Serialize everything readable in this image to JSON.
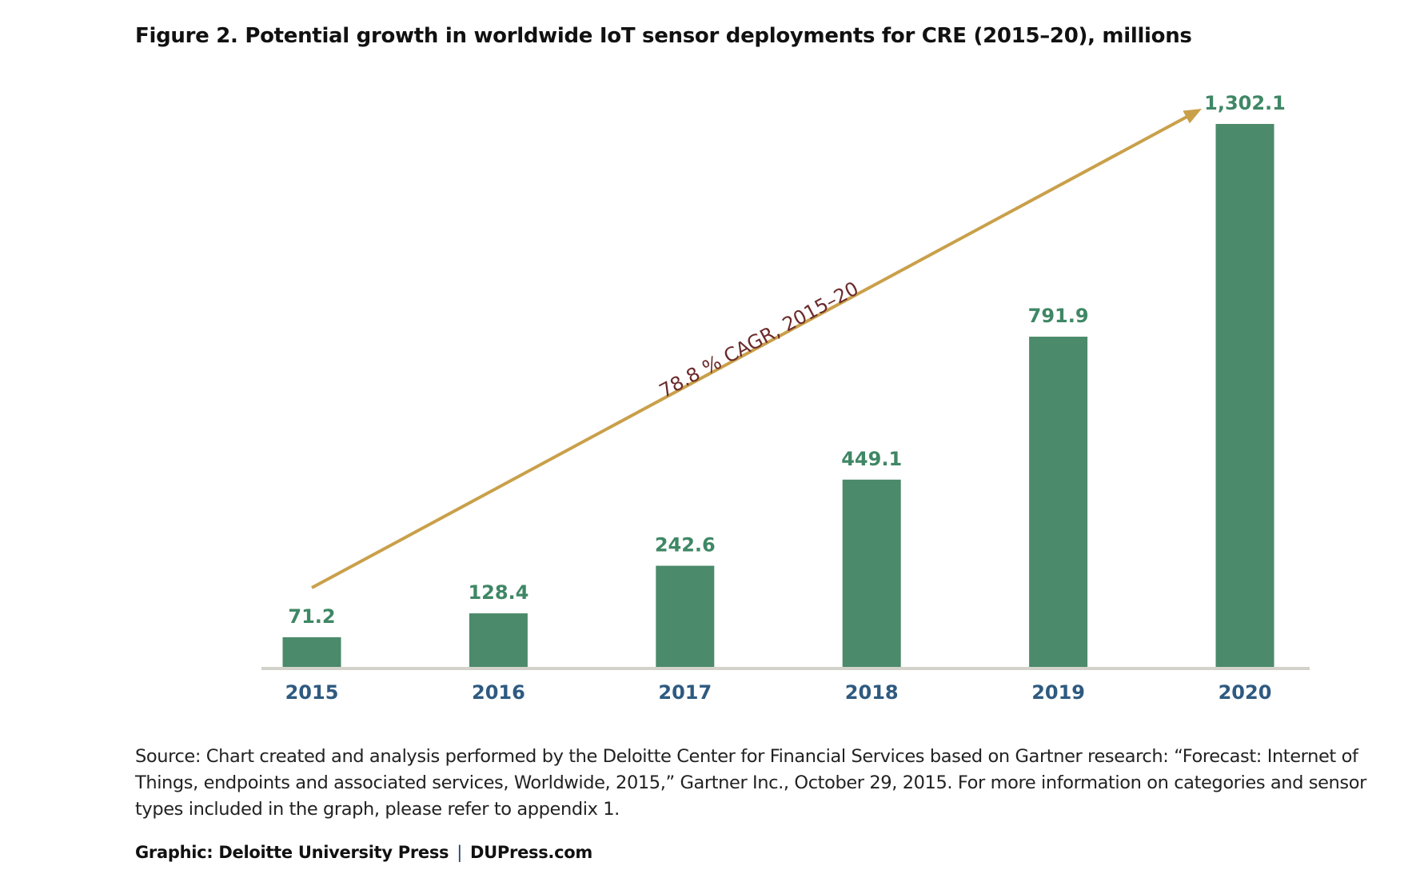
{
  "chart_data": {
    "type": "bar",
    "title": "Figure 2. Potential growth in worldwide IoT sensor deployments for CRE (2015–20), millions",
    "categories": [
      "2015",
      "2016",
      "2017",
      "2018",
      "2019",
      "2020"
    ],
    "values": [
      71.2,
      128.4,
      242.6,
      449.1,
      791.9,
      1302.1
    ],
    "value_labels": [
      "71.2",
      "128.4",
      "242.6",
      "449.1",
      "791.9",
      "1,302.1"
    ],
    "xlabel": "",
    "ylabel": "",
    "ylim": [
      0,
      1302.1
    ],
    "grid": false,
    "legend": "none",
    "annotation": {
      "text": "78.8 % CAGR, 2015–20",
      "type": "arrow",
      "from_category": "2015",
      "to_category": "2020"
    },
    "colors": {
      "bar": "#4b8a6a",
      "value_label": "#3f8765",
      "tick_label": "#2e5a80",
      "axis": "#d3d3cc",
      "arrow": "#c9a04a",
      "annotation_text": "#6b2a2a"
    }
  },
  "source_text": "Source: Chart created and analysis performed by the Deloitte Center for Financial Services based on Gartner research: “Forecast: Internet of Things, endpoints and associated services, Worldwide, 2015,” Gartner Inc., October 29, 2015. For more information on categories and sensor types included in the graph, please refer to appendix 1.",
  "credit": {
    "graphic": "Graphic: Deloitte University Press",
    "separator": "|",
    "site": "DUPress.com"
  }
}
